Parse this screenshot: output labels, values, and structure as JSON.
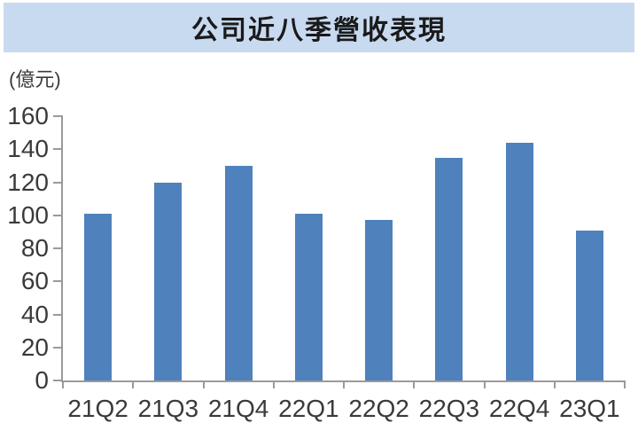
{
  "title": "公司近八季營收表現",
  "unit_label": "(億元)",
  "colors": {
    "banner_background": "#C8DAF0",
    "bar_fill": "#4F81BD",
    "axis_line": "#9A9A9A",
    "label_text": "#3A3A3A",
    "title_text": "#1A1A1A"
  },
  "chart_data": {
    "type": "bar",
    "title": "公司近八季營收表現",
    "categories": [
      "21Q2",
      "21Q3",
      "21Q4",
      "22Q1",
      "22Q2",
      "22Q3",
      "22Q4",
      "23Q1"
    ],
    "values": [
      101,
      120,
      130,
      101,
      97,
      135,
      144,
      91
    ],
    "xlabel": "",
    "ylabel": "(億元)",
    "ylim": [
      0,
      160
    ],
    "ytick_step": 20,
    "yticks": [
      0,
      20,
      40,
      60,
      80,
      100,
      120,
      140,
      160
    ],
    "grid": false,
    "legend": "none"
  }
}
